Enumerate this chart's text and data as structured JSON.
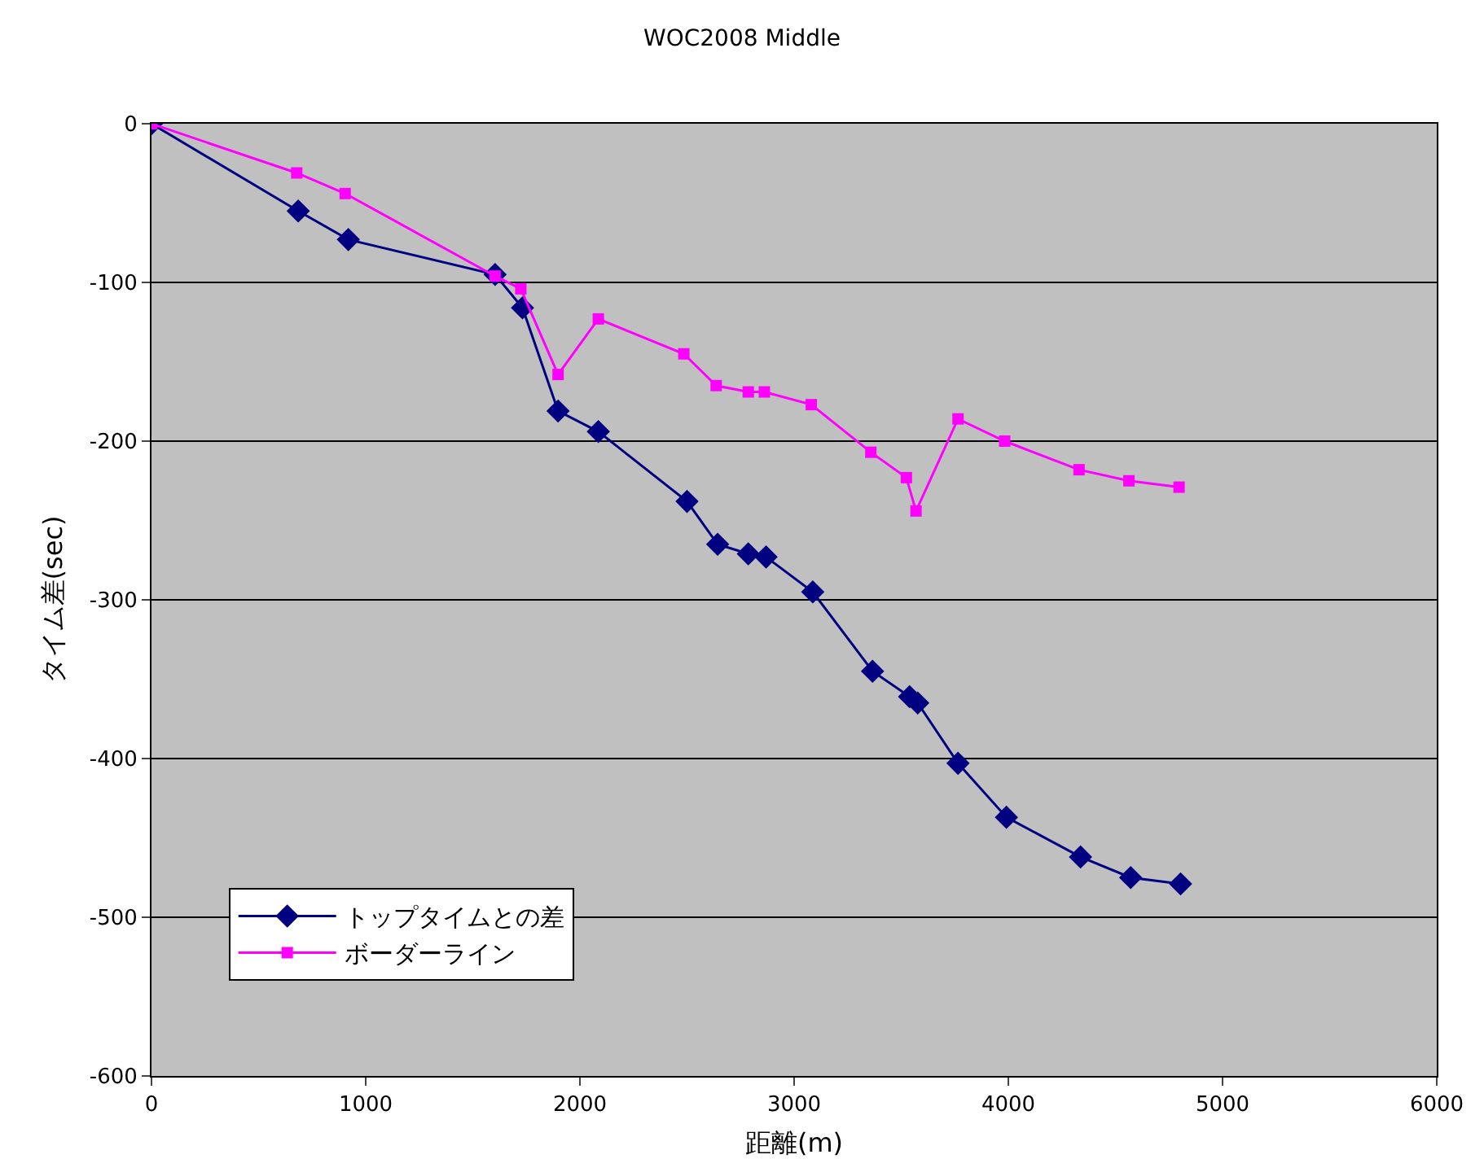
{
  "chart_data": {
    "type": "line",
    "title": "WOC2008 Middle",
    "xlabel": "距離(m)",
    "ylabel": "タイム差(sec)",
    "xlim": [
      0,
      6000
    ],
    "xticks": [
      0,
      1000,
      2000,
      3000,
      4000,
      5000,
      6000
    ],
    "ylim": [
      -600,
      0
    ],
    "yticks": [
      -600,
      -500,
      -400,
      -300,
      -200,
      -100,
      0
    ],
    "grid": "y",
    "legend": "bottom left",
    "line_style": "solid",
    "series": [
      {
        "name": "トップタイムとの差",
        "color": "#000080",
        "marker": "diamond",
        "x": [
          0,
          685,
          919,
          1604,
          1732,
          1898,
          2086,
          2500,
          2643,
          2786,
          2869,
          3087,
          3366,
          3539,
          3577,
          3765,
          3991,
          4337,
          4571,
          4804
        ],
        "values": [
          0,
          -55,
          -73,
          -95,
          -116,
          -181,
          -194,
          -238,
          -265,
          -271,
          -273,
          -295,
          -345,
          -361,
          -365,
          -403,
          -437,
          -462,
          -475,
          -479
        ]
      },
      {
        "name": "ボーダーライン",
        "color": "#ff00ff",
        "marker": "square",
        "x": [
          0,
          678,
          904,
          1604,
          1724,
          1898,
          2086,
          2485,
          2636,
          2786,
          2861,
          3080,
          3358,
          3524,
          3569,
          3765,
          3983,
          4330,
          4563,
          4797
        ],
        "values": [
          0,
          -31,
          -44,
          -96,
          -104,
          -158,
          -123,
          -145,
          -165,
          -169,
          -169,
          -177,
          -207,
          -223,
          -244,
          -186,
          -200,
          -218,
          -225,
          -229
        ]
      }
    ]
  }
}
